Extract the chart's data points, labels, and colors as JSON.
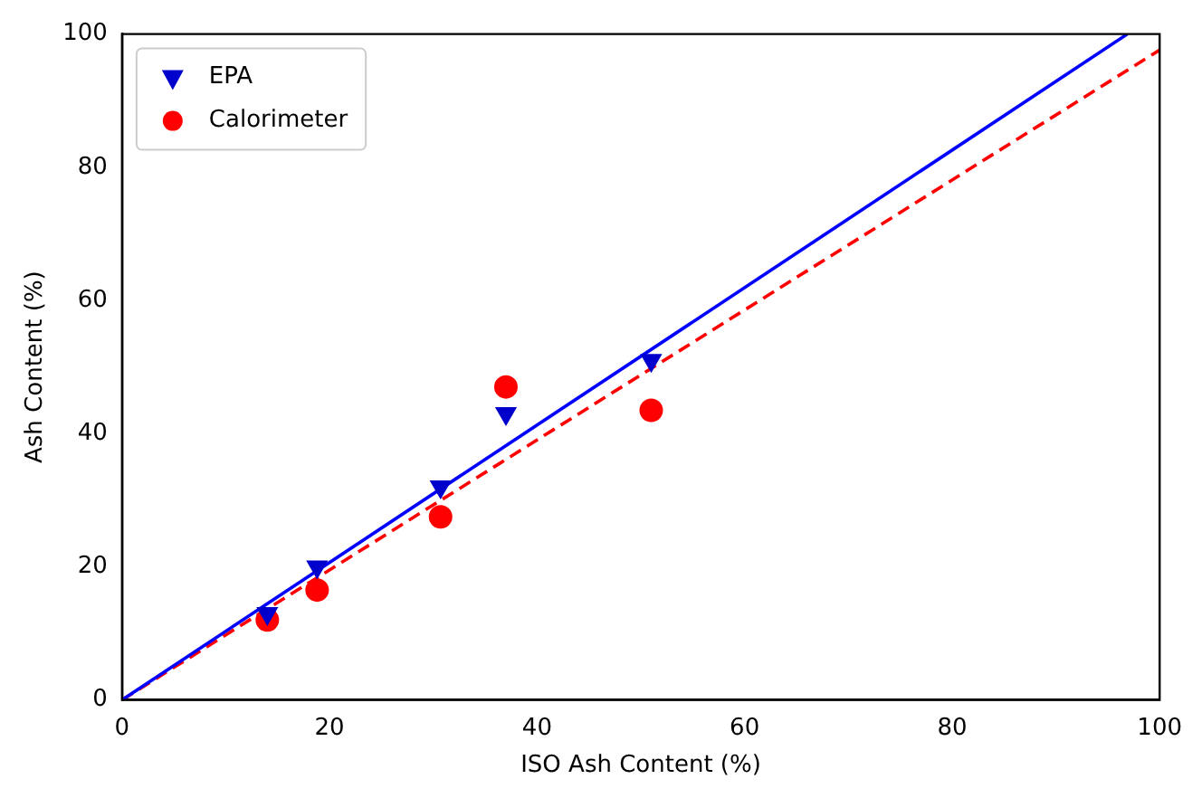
{
  "chart_data": {
    "type": "scatter",
    "xlabel": "ISO Ash Content (%)",
    "ylabel": "Ash Content (%)",
    "xlim": [
      0,
      100
    ],
    "ylim": [
      0,
      100
    ],
    "xticks": [
      0,
      20,
      40,
      60,
      80,
      100
    ],
    "yticks": [
      0,
      20,
      40,
      60,
      80,
      100
    ],
    "grid": false,
    "legend": "top left",
    "series": [
      {
        "name": "EPA",
        "type": "scatter",
        "marker": "triangle",
        "color": "#0000cc",
        "x": [
          14,
          18.8,
          30.7,
          37,
          51
        ],
        "values": [
          13,
          20,
          32,
          43,
          51
        ]
      },
      {
        "name": "Calorimeter",
        "type": "scatter",
        "marker": "circle",
        "color": "#ff0000",
        "x": [
          14,
          18.8,
          30.7,
          37,
          51
        ],
        "values": [
          12,
          16.5,
          27.5,
          47,
          43.5
        ]
      },
      {
        "type": "line",
        "marker": "none",
        "line_style": "solid",
        "color": "#0000ff",
        "x": [
          0,
          96.9
        ],
        "values": [
          0,
          100
        ]
      },
      {
        "type": "line",
        "marker": "none",
        "line_style": "dashed",
        "color": "#ff0000",
        "x": [
          0,
          100
        ],
        "values": [
          0,
          97.6
        ]
      }
    ]
  }
}
